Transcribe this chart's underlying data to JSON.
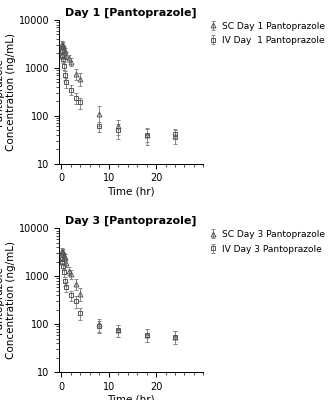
{
  "day1": {
    "title": "Day 1 [Pantoprazole]",
    "sc_label": "SC Day 1 Pantoprazole",
    "iv_label": "IV Day  1 Pantoprazole",
    "sc_x": [
      0.08,
      0.17,
      0.25,
      0.5,
      0.75,
      1.0,
      1.5,
      2.0,
      3.0,
      4.0,
      8.0,
      12.0,
      18.0,
      24.0
    ],
    "sc_y": [
      2800,
      3200,
      3000,
      2500,
      2200,
      1800,
      1600,
      1350,
      750,
      600,
      110,
      60,
      40,
      38
    ],
    "sc_yerr": [
      400,
      500,
      450,
      400,
      350,
      300,
      280,
      250,
      200,
      180,
      50,
      20,
      15,
      12
    ],
    "iv_x": [
      0.08,
      0.17,
      0.25,
      0.5,
      0.75,
      1.0,
      2.0,
      3.0,
      4.0,
      8.0,
      12.0,
      18.0,
      24.0
    ],
    "iv_y": [
      2200,
      1800,
      1500,
      1100,
      700,
      500,
      350,
      240,
      190,
      60,
      50,
      40,
      42
    ],
    "iv_yerr": [
      350,
      300,
      250,
      200,
      150,
      120,
      80,
      60,
      50,
      15,
      18,
      12,
      10
    ]
  },
  "day3": {
    "title": "Day 3 [Pantoprazole]",
    "sc_label": "SC Day 3 Pantoprazole",
    "iv_label": "IV Day 3 Pantoprazole",
    "sc_x": [
      0.08,
      0.17,
      0.25,
      0.5,
      0.75,
      1.0,
      1.5,
      2.0,
      3.0,
      4.0,
      8.0,
      12.0,
      18.0,
      24.0
    ],
    "sc_y": [
      3000,
      3400,
      3200,
      2700,
      2500,
      1900,
      1300,
      1100,
      700,
      430,
      100,
      75,
      60,
      55
    ],
    "sc_yerr": [
      450,
      520,
      480,
      400,
      380,
      320,
      260,
      220,
      180,
      130,
      30,
      22,
      18,
      16
    ],
    "iv_x": [
      0.08,
      0.17,
      0.25,
      0.5,
      0.75,
      1.0,
      2.0,
      3.0,
      4.0,
      8.0,
      12.0,
      18.0,
      24.0
    ],
    "iv_y": [
      2300,
      2000,
      1600,
      1200,
      800,
      600,
      400,
      300,
      170,
      90,
      75,
      60,
      55
    ],
    "iv_yerr": [
      380,
      320,
      280,
      220,
      170,
      140,
      100,
      80,
      50,
      25,
      20,
      18,
      16
    ]
  },
  "ylabel": "Pantoprazole\nConcentration (ng/mL)",
  "xlabel": "Time (hr)",
  "ylim_log": [
    10,
    10000
  ],
  "xlim": [
    -0.5,
    30
  ],
  "xticks_major": [
    0,
    10,
    20
  ],
  "xtick_minor_step": 2,
  "bg_color": "#ffffff",
  "marker_color": "#555555",
  "errorbar_color": "#888888",
  "title_fontsize": 8,
  "label_fontsize": 7.5,
  "tick_fontsize": 7,
  "legend_fontsize": 6.5
}
